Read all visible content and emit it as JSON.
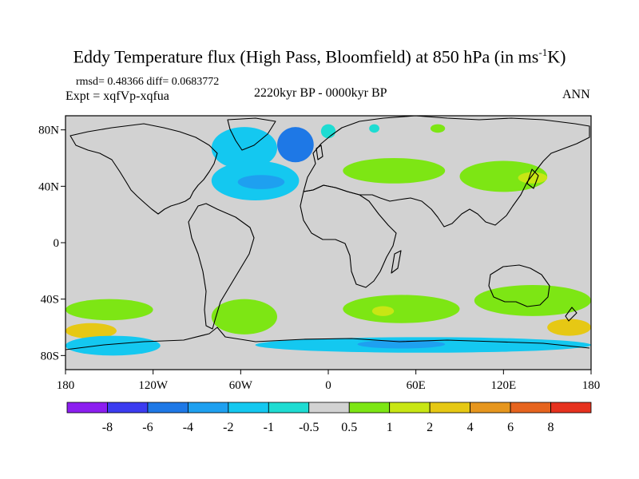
{
  "title": {
    "main": "Eddy Temperature flux (High Pass, Bloomfield) at 850 hPa (in ms",
    "sup": "-1",
    "end": "K)"
  },
  "subtitle": {
    "stats": "rmsd= 0.48366 diff= 0.0683772",
    "experiment": "Expt = xqfVp-xqfua",
    "period": "2220kyr BP - 0000kyr BP",
    "season": "ANN"
  },
  "chart_data": {
    "type": "heatmap",
    "title": "Eddy Temperature flux (High Pass, Bloomfield) at 850 hPa (in ms-1K)",
    "x_ticks": [
      "180",
      "120W",
      "60W",
      "0",
      "60E",
      "120E",
      "180"
    ],
    "y_ticks": [
      "80N",
      "40N",
      "0",
      "40S",
      "80S"
    ],
    "x_range_deg": [
      -180,
      180
    ],
    "y_range_deg": [
      -90,
      90
    ],
    "colorbar": {
      "labels": [
        "-8",
        "-6",
        "-4",
        "-2",
        "-1",
        "-0.5",
        "0.5",
        "1",
        "2",
        "4",
        "6",
        "8"
      ],
      "colors": [
        "#8c1ef0",
        "#3c3cf0",
        "#1e78e6",
        "#1ea0f0",
        "#14c8f0",
        "#1edcd2",
        "#d2d2d2",
        "#7de614",
        "#c8e614",
        "#e6c814",
        "#e6961e",
        "#e6641e",
        "#e6321e"
      ]
    },
    "regions": [
      {
        "lon": [
          -80,
          -35
        ],
        "lat": [
          52,
          82
        ],
        "level": 4
      },
      {
        "lon": [
          -35,
          -10
        ],
        "lat": [
          57,
          82
        ],
        "level": 2
      },
      {
        "lon": [
          -80,
          -20
        ],
        "lat": [
          30,
          58
        ],
        "level": 4
      },
      {
        "lon": [
          -62,
          -30
        ],
        "lat": [
          38,
          48
        ],
        "level": 3
      },
      {
        "lon": [
          -5,
          5
        ],
        "lat": [
          74,
          84
        ],
        "level": 5
      },
      {
        "lon": [
          28,
          35
        ],
        "lat": [
          78,
          84
        ],
        "level": 5
      },
      {
        "lon": [
          10,
          80
        ],
        "lat": [
          42,
          60
        ],
        "level": 7
      },
      {
        "lon": [
          90,
          150
        ],
        "lat": [
          36,
          58
        ],
        "level": 7
      },
      {
        "lon": [
          130,
          150
        ],
        "lat": [
          42,
          50
        ],
        "level": 8
      },
      {
        "lon": [
          70,
          80
        ],
        "lat": [
          78,
          84
        ],
        "level": 7
      },
      {
        "lon": [
          -180,
          -120
        ],
        "lat": [
          -40,
          -55
        ],
        "level": 7
      },
      {
        "lon": [
          -180,
          -145
        ],
        "lat": [
          -57,
          -68
        ],
        "level": 9
      },
      {
        "lon": [
          -180,
          -115
        ],
        "lat": [
          -66,
          -80
        ],
        "level": 4
      },
      {
        "lon": [
          -80,
          -35
        ],
        "lat": [
          -40,
          -65
        ],
        "level": 7
      },
      {
        "lon": [
          10,
          90
        ],
        "lat": [
          -37,
          -57
        ],
        "level": 7
      },
      {
        "lon": [
          30,
          45
        ],
        "lat": [
          -45,
          -52
        ],
        "level": 8
      },
      {
        "lon": [
          100,
          180
        ],
        "lat": [
          -30,
          -52
        ],
        "level": 7
      },
      {
        "lon": [
          150,
          180
        ],
        "lat": [
          -54,
          -66
        ],
        "level": 9
      },
      {
        "lon": [
          -50,
          180
        ],
        "lat": [
          -67,
          -78
        ],
        "level": 4
      },
      {
        "lon": [
          20,
          80
        ],
        "lat": [
          -69,
          -75
        ],
        "level": 3
      }
    ]
  }
}
